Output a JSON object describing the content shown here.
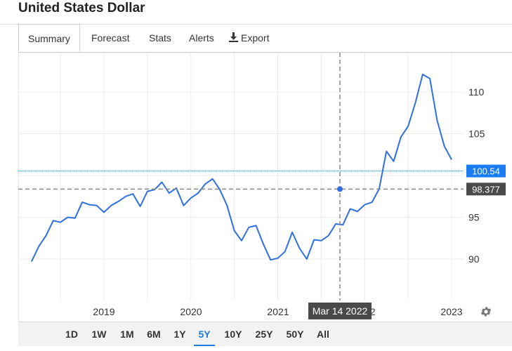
{
  "page_title": "United States Dollar",
  "tabs": [
    {
      "label": "Summary",
      "active": true
    },
    {
      "label": "Forecast"
    },
    {
      "label": "Stats"
    },
    {
      "label": "Alerts"
    },
    {
      "label": "Export",
      "icon": "download-icon"
    }
  ],
  "ranges": [
    "1D",
    "1W",
    "1M",
    "6M",
    "1Y",
    "5Y",
    "10Y",
    "25Y",
    "50Y",
    "All"
  ],
  "active_range": "5Y",
  "crosshair": {
    "date_label": "Mar 14 2022",
    "value_label": "98.377"
  },
  "last_price_label": "100.54",
  "colors": {
    "line": "#2f6fe0",
    "last_price_badge": "#1a7cf2",
    "crosshair_badge": "#4a4a4a",
    "active_range": "#1f7bd7"
  },
  "chart_data": {
    "type": "line",
    "x_tick_labels": [
      "2019",
      "2020",
      "2021",
      "2022",
      "2023"
    ],
    "y_tick_labels": [
      "90",
      "95",
      "105",
      "110"
    ],
    "ylim": [
      86,
      114
    ],
    "grid": true,
    "series": [
      {
        "x": [
          "2018-03",
          "2018-04",
          "2018-05",
          "2018-06",
          "2018-07",
          "2018-08",
          "2018-09",
          "2018-10",
          "2018-11",
          "2018-12",
          "2019-01",
          "2019-02",
          "2019-03",
          "2019-04",
          "2019-05",
          "2019-06",
          "2019-07",
          "2019-08",
          "2019-09",
          "2019-10",
          "2019-11",
          "2019-12",
          "2020-01",
          "2020-02",
          "2020-03",
          "2020-04",
          "2020-05",
          "2020-06",
          "2020-07",
          "2020-08",
          "2020-09",
          "2020-10",
          "2020-11",
          "2020-12",
          "2021-01",
          "2021-02",
          "2021-03",
          "2021-04",
          "2021-05",
          "2021-06",
          "2021-07",
          "2021-08",
          "2021-09",
          "2021-10",
          "2021-11",
          "2021-12",
          "2022-01",
          "2022-02",
          "2022-03",
          "2022-04",
          "2022-05",
          "2022-06",
          "2022-07",
          "2022-08",
          "2022-09",
          "2022-10",
          "2022-11",
          "2022-12",
          "2023-01"
        ],
        "values": [
          89.7,
          91.5,
          92.8,
          94.6,
          94.4,
          95.0,
          94.9,
          96.8,
          96.5,
          96.4,
          95.6,
          96.4,
          96.9,
          97.5,
          97.8,
          96.3,
          98.1,
          98.3,
          99.2,
          97.9,
          98.5,
          96.4,
          97.3,
          97.9,
          99.0,
          99.6,
          98.3,
          96.4,
          93.4,
          92.2,
          93.8,
          94.0,
          91.8,
          89.9,
          90.1,
          90.9,
          93.2,
          91.3,
          90.0,
          92.3,
          92.2,
          92.8,
          94.2,
          94.1,
          96.0,
          95.7,
          96.5,
          96.8,
          98.4,
          102.9,
          101.7,
          104.6,
          105.9,
          108.7,
          112.1,
          111.6,
          106.6,
          103.5,
          101.9
        ]
      }
    ]
  }
}
